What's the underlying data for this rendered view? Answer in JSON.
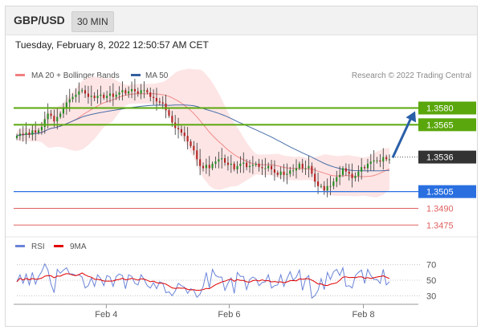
{
  "header": {
    "pair": "GBP/USD",
    "timeframe": "30 MIN"
  },
  "timestamp": "Tuesday, February 8, 2022 12:50:57 AM CET",
  "legend": {
    "bollinger": {
      "label": "MA 20 + Bollinger Bands",
      "color": "#f08080"
    },
    "ma50": {
      "label": "MA 50",
      "color": "#3560a0"
    }
  },
  "credit": "Research © 2022 Trading Central",
  "rsi_legend": {
    "rsi": {
      "label": "RSI",
      "color": "#6a84d8"
    },
    "ma9": {
      "label": "9MA",
      "color": "#e00000"
    }
  },
  "colors": {
    "bull": "#228b22",
    "bear": "#b22222",
    "resistance": "#5aa70d",
    "current": "#333333",
    "pivot": "#2a6fe0",
    "support": "#e06060"
  },
  "chart_data": [
    {
      "type": "candlestick",
      "symbol": "GBP/USD",
      "interval": "30 MIN",
      "x_tick_labels": [
        "Feb 4",
        "Feb 6",
        "Feb 8"
      ],
      "indicators": [
        "MA 20 + Bollinger Bands",
        "MA 50"
      ],
      "ylim": [
        1.3468,
        1.3602
      ],
      "levels": [
        {
          "value": "1.3580",
          "kind": "resistance"
        },
        {
          "value": "1.3565",
          "kind": "resistance"
        },
        {
          "value": "1.3536",
          "kind": "current"
        },
        {
          "value": "1.3505",
          "kind": "pivot"
        },
        {
          "value": "1.3490",
          "kind": "support"
        },
        {
          "value": "1.3475",
          "kind": "support"
        }
      ],
      "forecast": "up, toward 1.3580",
      "close_series": [
        1.3555,
        1.3557,
        1.3556,
        1.3558,
        1.3556,
        1.356,
        1.3558,
        1.356,
        1.3563,
        1.357,
        1.3575,
        1.3573,
        1.3568,
        1.3572,
        1.3575,
        1.358,
        1.3585,
        1.3588,
        1.359,
        1.3592,
        1.3595,
        1.3596,
        1.3593,
        1.359,
        1.3591,
        1.3589,
        1.3591,
        1.3592,
        1.3589,
        1.3591,
        1.3593,
        1.359,
        1.3592,
        1.3594,
        1.3596,
        1.3593,
        1.3595,
        1.3597,
        1.3595,
        1.3593,
        1.3596,
        1.3596,
        1.3594,
        1.359,
        1.3589,
        1.3586,
        1.3585,
        1.3584,
        1.3578,
        1.3573,
        1.3567,
        1.3562,
        1.3561,
        1.3558,
        1.3555,
        1.355,
        1.3546,
        1.3542,
        1.3534,
        1.3528,
        1.3526,
        1.3529,
        1.3526,
        1.353,
        1.3532,
        1.3534,
        1.3535,
        1.3531,
        1.3529,
        1.353,
        1.3525,
        1.3528,
        1.353,
        1.3531,
        1.3527,
        1.3528,
        1.3529,
        1.353,
        1.3527,
        1.3526,
        1.3526,
        1.3528,
        1.3525,
        1.3522,
        1.352,
        1.3523,
        1.352,
        1.3521,
        1.3524,
        1.3524,
        1.3526,
        1.353,
        1.3526,
        1.3526,
        1.3528,
        1.3521,
        1.3514,
        1.351,
        1.351,
        1.3506,
        1.351,
        1.351,
        1.3514,
        1.3518,
        1.352,
        1.3526,
        1.3523,
        1.3521,
        1.3517,
        1.3519,
        1.3523,
        1.3527,
        1.3526,
        1.353,
        1.3532,
        1.3533,
        1.3533,
        1.3532,
        1.3536,
        1.3534,
        1.3534
      ],
      "rsi_reference_levels": [
        "70",
        "50",
        "30"
      ]
    }
  ]
}
